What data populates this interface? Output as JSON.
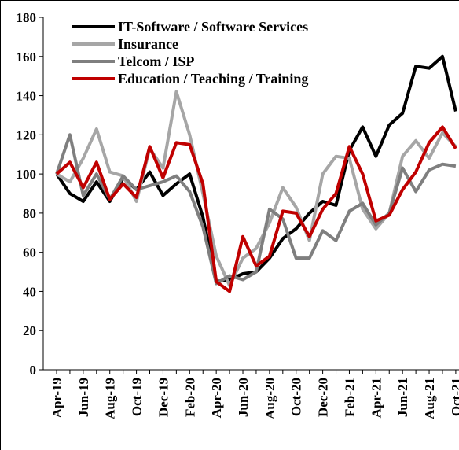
{
  "chart_data": {
    "type": "line",
    "categories": [
      "Apr-19",
      null,
      "Jun-19",
      null,
      "Aug-19",
      null,
      "Oct-19",
      null,
      "Dec-19",
      null,
      "Feb-20",
      null,
      "Apr-20",
      null,
      "Jun-20",
      null,
      "Aug-20",
      null,
      "Oct-20",
      null,
      "Dec-20",
      null,
      "Feb-21",
      null,
      "Apr-21",
      null,
      "Jun-21",
      null,
      "Aug-21",
      null,
      "Oct-21"
    ],
    "series": [
      {
        "name": "IT-Software / Software Services",
        "color": "#000000",
        "values": [
          100,
          90,
          86,
          96,
          86,
          98,
          92,
          101,
          89,
          95,
          100,
          78,
          45,
          46,
          49,
          50,
          57,
          67,
          72,
          80,
          86,
          84,
          112,
          124,
          109,
          125,
          131,
          155,
          154,
          160,
          132
        ]
      },
      {
        "name": "Insurance",
        "color": "#a6a6a6",
        "values": [
          100,
          96,
          108,
          123,
          101,
          99,
          86,
          113,
          103,
          142,
          120,
          90,
          58,
          43,
          57,
          62,
          75,
          93,
          83,
          66,
          100,
          109,
          108,
          82,
          72,
          80,
          109,
          117,
          108,
          121,
          114
        ]
      },
      {
        "name": "Telcom / ISP",
        "color": "#7f7f7f",
        "values": [
          100,
          120,
          89,
          100,
          87,
          99,
          92,
          94,
          96,
          99,
          91,
          73,
          44,
          48,
          46,
          50,
          82,
          77,
          57,
          57,
          71,
          66,
          81,
          85,
          74,
          80,
          103,
          91,
          102,
          105,
          104
        ]
      },
      {
        "name": "Education / Teaching / Training",
        "color": "#c00000",
        "values": [
          100,
          106,
          93,
          106,
          87,
          95,
          88,
          114,
          98,
          116,
          115,
          95,
          45,
          40,
          68,
          53,
          58,
          81,
          80,
          68,
          82,
          90,
          114,
          100,
          76,
          79,
          92,
          101,
          116,
          124,
          113
        ]
      }
    ],
    "ylim": [
      0,
      180
    ],
    "yticks": [
      0,
      20,
      40,
      60,
      80,
      100,
      120,
      140,
      160,
      180
    ]
  }
}
